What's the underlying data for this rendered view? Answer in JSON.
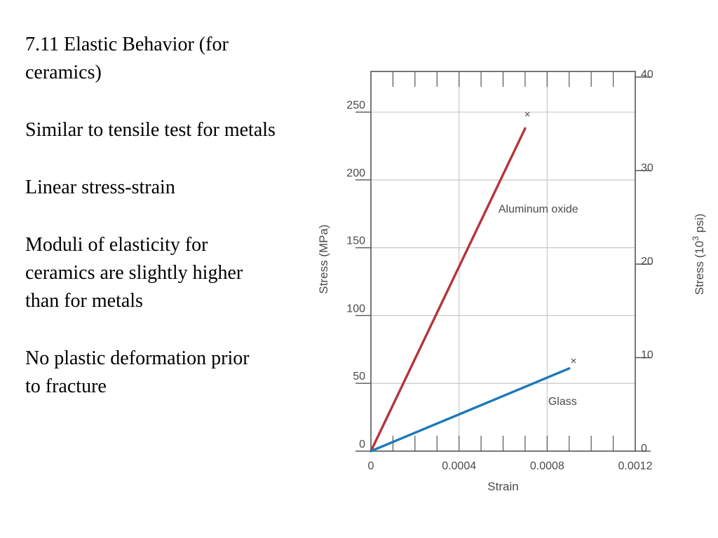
{
  "slide": {
    "title_line1": "7.11 Elastic Behavior (for",
    "title_line2": "ceramics)",
    "bullet1": "Similar to tensile test for metals",
    "bullet2": "Linear stress-strain",
    "bullet3_line1": "Moduli of elasticity for",
    "bullet3_line2": "ceramics are slightly higher",
    "bullet3_line3": "than for metals",
    "bullet4_line1": "No plastic deformation prior",
    "bullet4_line2": "to fracture"
  },
  "chart_data": {
    "type": "line",
    "xlabel": "Strain",
    "ylabel": "Stress (MPa)",
    "y2label_prefix": "Stress (10",
    "y2label_exp": "3",
    "y2label_suffix": " psi)",
    "xlim": [
      0,
      0.0012
    ],
    "ylim": [
      0,
      280
    ],
    "y2lim": [
      0,
      40.6
    ],
    "x_ticks": [
      0,
      0.0004,
      0.0008,
      0.0012
    ],
    "x_tick_labels": [
      "0",
      "0.0004",
      "0.0008",
      "0.0012"
    ],
    "y_ticks": [
      0,
      50,
      100,
      150,
      200,
      250
    ],
    "y_tick_labels": [
      "0",
      "50",
      "100",
      "150",
      "200",
      "250"
    ],
    "y2_ticks": [
      0,
      10,
      20,
      30,
      40
    ],
    "y2_tick_labels": [
      "0",
      "10",
      "20",
      "30",
      "40"
    ],
    "grid": true,
    "fracture_marker": "×",
    "series": [
      {
        "name": "Aluminum oxide",
        "color": "#b5343c",
        "x": [
          0,
          0.0007
        ],
        "y": [
          0,
          238
        ],
        "fracture": {
          "x": 0.00071,
          "y": 246
        },
        "label_pos": {
          "x": 0.00076,
          "y": 176
        }
      },
      {
        "name": "Glass",
        "color": "#1a7ab8",
        "x": [
          0,
          0.0009
        ],
        "y": [
          0,
          61
        ],
        "fracture": {
          "x": 0.00092,
          "y": 64
        },
        "label_pos": {
          "x": 0.00087,
          "y": 34
        }
      }
    ]
  }
}
